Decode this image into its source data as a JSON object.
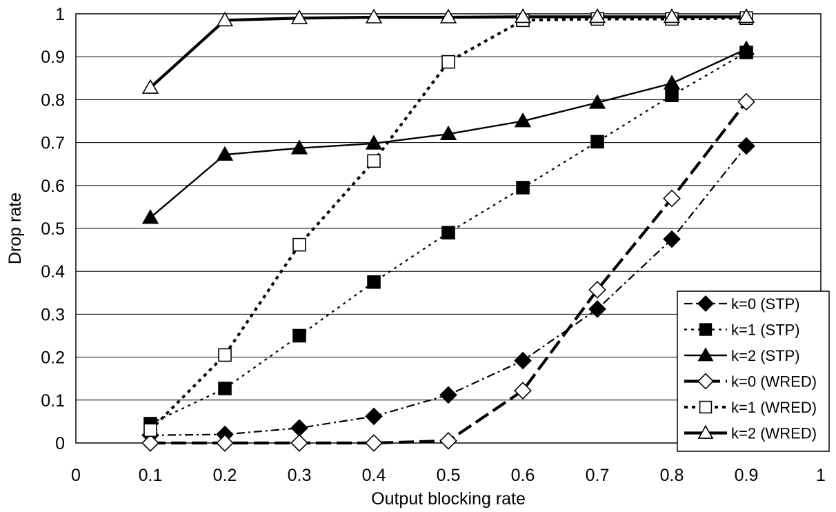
{
  "chart_data": {
    "type": "line",
    "xlabel": "Output blocking rate",
    "ylabel": "Drop rate",
    "xlim": [
      0,
      1
    ],
    "ylim": [
      0,
      1
    ],
    "x_ticks": [
      "0",
      "0.1",
      "0.2",
      "0.3",
      "0.4",
      "0.5",
      "0.6",
      "0.7",
      "0.8",
      "0.9",
      "1"
    ],
    "y_ticks": [
      "0",
      "0.1",
      "0.2",
      "0.3",
      "0.4",
      "0.5",
      "0.6",
      "0.7",
      "0.8",
      "0.9",
      "1"
    ],
    "grid": "horizontal",
    "legend_position": "bottom-right",
    "x": [
      0.1,
      0.2,
      0.3,
      0.4,
      0.5,
      0.6,
      0.7,
      0.8,
      0.9
    ],
    "series": [
      {
        "name": "k=0 (STP)",
        "marker": "diamond-filled",
        "line": "dash-dot",
        "values": [
          0.018,
          0.02,
          0.035,
          0.062,
          0.112,
          0.192,
          0.312,
          0.475,
          0.692
        ]
      },
      {
        "name": "k=1 (STP)",
        "marker": "square-filled",
        "line": "dotted",
        "values": [
          0.045,
          0.127,
          0.25,
          0.375,
          0.49,
          0.595,
          0.702,
          0.81,
          0.91
        ]
      },
      {
        "name": "k=2 (STP)",
        "marker": "triangle-filled",
        "line": "solid",
        "values": [
          0.525,
          0.672,
          0.687,
          0.698,
          0.72,
          0.75,
          0.793,
          0.838,
          0.918
        ]
      },
      {
        "name": "k=0 (WRED)",
        "marker": "diamond-open",
        "line": "long-dash",
        "values": [
          0.0,
          0.0,
          0.0,
          0.0,
          0.005,
          0.122,
          0.357,
          0.57,
          0.795
        ]
      },
      {
        "name": "k=1 (WRED)",
        "marker": "square-open",
        "line": "thick-dotted",
        "values": [
          0.03,
          0.205,
          0.462,
          0.657,
          0.888,
          0.985,
          0.988,
          0.988,
          0.99
        ]
      },
      {
        "name": "k=2 (WRED)",
        "marker": "triangle-open",
        "line": "thick-solid",
        "values": [
          0.828,
          0.985,
          0.99,
          0.992,
          0.992,
          0.993,
          0.993,
          0.993,
          0.993
        ]
      }
    ]
  }
}
